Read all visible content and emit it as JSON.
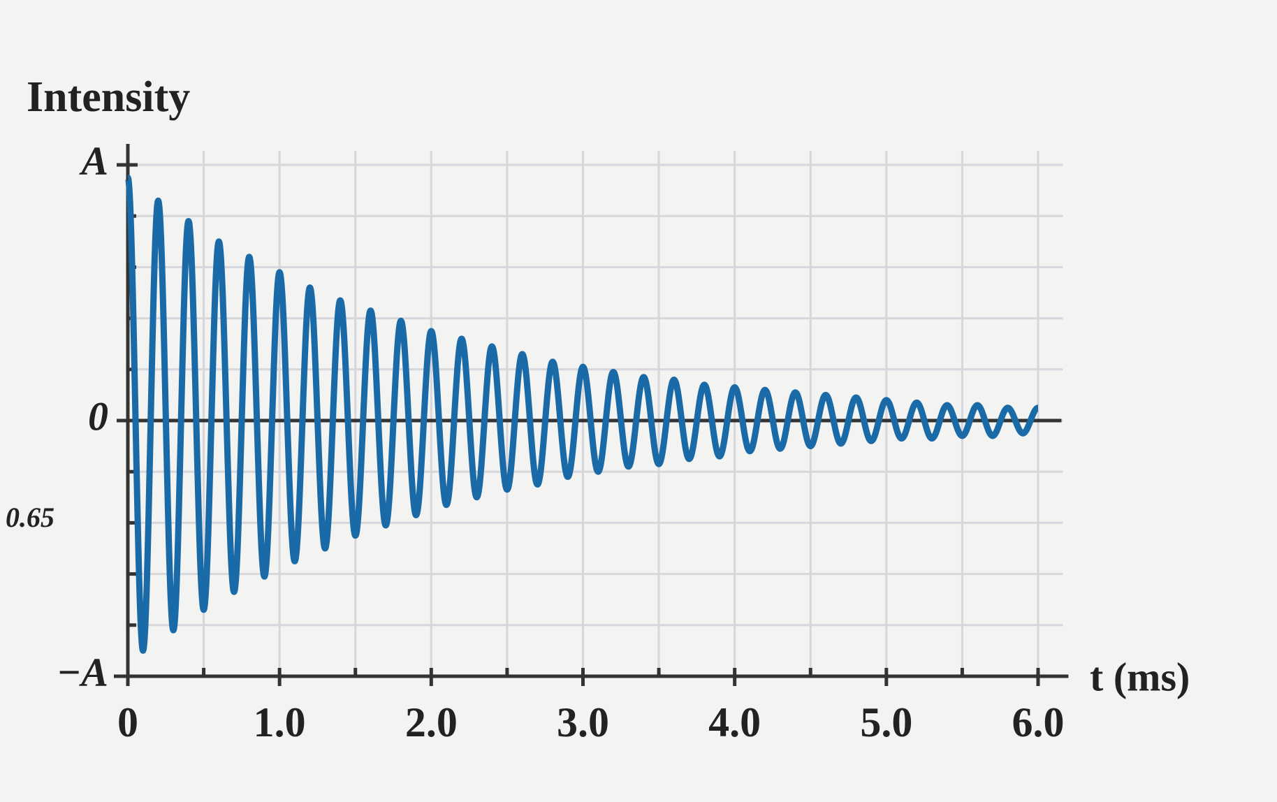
{
  "chart_data": {
    "type": "line",
    "y_label": "Intensity",
    "x_label": "t (ms)",
    "annotation": "0.65",
    "x": [
      0,
      0.1,
      0.2,
      0.3,
      0.4,
      0.5,
      0.6,
      0.7,
      0.8,
      0.9,
      1.0,
      1.1,
      1.2,
      1.3,
      1.4,
      1.5,
      1.6,
      1.7,
      1.8,
      1.9,
      2.0,
      2.1,
      2.2,
      2.3,
      2.4,
      2.5,
      2.6,
      2.7,
      2.8,
      2.9,
      3.0,
      3.1,
      3.2,
      3.3,
      3.4,
      3.5,
      3.6,
      3.7,
      3.8,
      3.9,
      4.0,
      4.1,
      4.2,
      4.3,
      4.4,
      4.5,
      4.6,
      4.7,
      4.8,
      4.9,
      5.0,
      5.1,
      5.2,
      5.3,
      5.4,
      5.5,
      5.6,
      5.7,
      5.8,
      5.9,
      6.0
    ],
    "series": [
      {
        "color": "#1a6aa8",
        "values": [
          0.95,
          -0.9,
          0.86,
          -0.82,
          0.78,
          -0.74,
          0.7,
          -0.67,
          0.64,
          -0.61,
          0.58,
          -0.55,
          0.52,
          -0.5,
          0.47,
          -0.45,
          0.43,
          -0.41,
          0.39,
          -0.37,
          0.35,
          -0.33,
          0.32,
          -0.3,
          0.29,
          -0.27,
          0.26,
          -0.25,
          0.23,
          -0.22,
          0.21,
          -0.2,
          0.19,
          -0.18,
          0.17,
          -0.17,
          0.16,
          -0.15,
          0.14,
          -0.14,
          0.13,
          -0.12,
          0.12,
          -0.11,
          0.11,
          -0.1,
          0.1,
          -0.09,
          0.09,
          -0.08,
          0.08,
          -0.07,
          0.07,
          -0.07,
          0.06,
          -0.06,
          0.06,
          -0.06,
          0.05,
          -0.05,
          0.05
        ]
      }
    ],
    "xlim": [
      0,
      6.2
    ],
    "ylim": [
      -1,
      1
    ],
    "xticks": [
      0,
      {
        "value": 1,
        "label": "1.0"
      },
      {
        "value": 2,
        "label": "2.0"
      },
      {
        "value": 3,
        "label": "3.0"
      },
      {
        "value": 4,
        "label": "4.0"
      },
      {
        "value": 5,
        "label": "5.0"
      },
      {
        "value": 6,
        "label": "6.0"
      }
    ],
    "yticks": [
      {
        "value": 1,
        "label": "A"
      },
      0,
      {
        "value": -1,
        "label": "−A"
      }
    ],
    "xminorticks": [
      0.5,
      1.5,
      2.5,
      3.5,
      4.5,
      5.5
    ],
    "yminorticks": [
      -0.8,
      -0.6,
      -0.4,
      -0.2,
      0.2,
      0.4,
      0.6,
      0.8
    ],
    "grid": true
  }
}
